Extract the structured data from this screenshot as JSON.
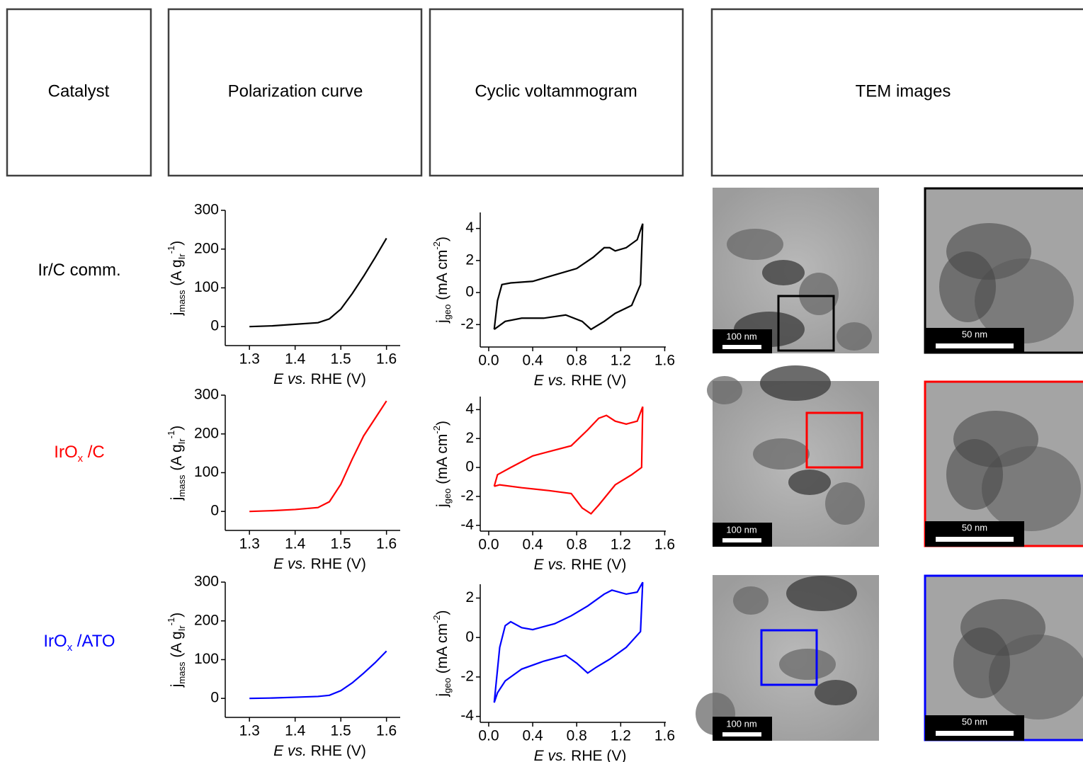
{
  "headers": [
    "Catalyst",
    "Polarization curve",
    "Cyclic voltammogram",
    "TEM images"
  ],
  "rows": [
    {
      "catalyst": [
        "Ir/C comm."
      ],
      "color": "#000000",
      "tem_scale_overview": "100 nm",
      "tem_scale_zoom": "50 nm"
    },
    {
      "catalyst": [
        "IrO",
        "x",
        " /C"
      ],
      "color": "#ff0000",
      "tem_scale_overview": "100 nm",
      "tem_scale_zoom": "50 nm"
    },
    {
      "catalyst": [
        "IrO",
        "x",
        " /ATO"
      ],
      "color": "#0000ff",
      "tem_scale_overview": "100 nm",
      "tem_scale_zoom": "50 nm"
    }
  ],
  "chart_data": [
    {
      "type": "line",
      "color": "#000000",
      "x": [
        1.3,
        1.35,
        1.4,
        1.45,
        1.475,
        1.5,
        1.525,
        1.55,
        1.575,
        1.6
      ],
      "values": [
        0,
        2,
        6,
        10,
        20,
        45,
        85,
        130,
        178,
        228
      ],
      "xlim": [
        1.247,
        1.63
      ],
      "ylim": [
        -49,
        300
      ],
      "xticks": [
        1.3,
        1.4,
        1.5,
        1.6
      ],
      "yticks": [
        0,
        100,
        200,
        300
      ],
      "xlabel": [
        "E",
        " vs.",
        " RHE (V)"
      ],
      "ylabel": [
        "j",
        "mass",
        " (A g",
        "Ir",
        "-1",
        ")"
      ]
    },
    {
      "type": "line",
      "color": "#000000",
      "x": [
        0.05,
        0.08,
        0.12,
        0.2,
        0.4,
        0.6,
        0.8,
        0.95,
        1.05,
        1.1,
        1.15,
        1.25,
        1.35,
        1.4,
        1.38,
        1.3,
        1.15,
        1.05,
        0.93,
        0.85,
        0.7,
        0.5,
        0.3,
        0.15,
        0.05
      ],
      "values": [
        -2.3,
        -0.5,
        0.5,
        0.6,
        0.7,
        1.1,
        1.5,
        2.2,
        2.8,
        2.8,
        2.6,
        2.8,
        3.3,
        4.3,
        0.5,
        -0.8,
        -1.3,
        -1.8,
        -2.3,
        -1.8,
        -1.4,
        -1.6,
        -1.6,
        -1.8,
        -2.3
      ],
      "xlim": [
        -0.077,
        1.61
      ],
      "ylim": [
        -3.4,
        5
      ],
      "xticks": [
        {
          "value": 0,
          "label": "0.0"
        },
        0.4,
        0.8,
        1.2,
        1.6
      ],
      "yticks": [
        -2,
        0,
        2,
        4
      ],
      "xlabel": [
        "E",
        " vs.",
        " RHE (V)"
      ],
      "ylabel": [
        "j",
        "geo",
        " (mA cm",
        "-2",
        ")"
      ]
    },
    {
      "type": "line",
      "color": "#ff0000",
      "x": [
        1.3,
        1.35,
        1.4,
        1.45,
        1.475,
        1.5,
        1.525,
        1.55,
        1.575,
        1.6
      ],
      "values": [
        0,
        2,
        5,
        10,
        25,
        70,
        135,
        195,
        240,
        285
      ],
      "xlim": [
        1.247,
        1.63
      ],
      "ylim": [
        -49,
        300
      ],
      "xticks": [
        1.3,
        1.4,
        1.5,
        1.6
      ],
      "yticks": [
        0,
        100,
        200,
        300
      ],
      "xlabel": [
        "E",
        " vs.",
        " RHE (V)"
      ],
      "ylabel": [
        "j",
        "mass",
        " (A g",
        "Ir",
        "-1",
        ")"
      ]
    },
    {
      "type": "line",
      "color": "#ff0000",
      "x": [
        0.05,
        0.08,
        0.2,
        0.4,
        0.6,
        0.75,
        0.9,
        1.0,
        1.07,
        1.15,
        1.25,
        1.35,
        1.4,
        1.39,
        1.3,
        1.15,
        1.0,
        0.93,
        0.85,
        0.75,
        0.55,
        0.3,
        0.1,
        0.05
      ],
      "values": [
        -1.3,
        -0.5,
        0,
        0.8,
        1.2,
        1.5,
        2.6,
        3.4,
        3.6,
        3.2,
        3.0,
        3.2,
        4.2,
        0,
        -0.5,
        -1.2,
        -2.6,
        -3.2,
        -2.8,
        -1.8,
        -1.6,
        -1.4,
        -1.2,
        -1.3
      ],
      "xlim": [
        -0.077,
        1.61
      ],
      "ylim": [
        -4.4,
        4.9
      ],
      "xticks": [
        {
          "value": 0,
          "label": "0.0"
        },
        0.4,
        0.8,
        1.2,
        1.6
      ],
      "yticks": [
        -4,
        -2,
        0,
        2,
        4
      ],
      "xlabel": [
        "E",
        " vs.",
        " RHE (V)"
      ],
      "ylabel": [
        "j",
        "geo",
        " (mA cm",
        "-2",
        ")"
      ]
    },
    {
      "type": "line",
      "color": "#0000ff",
      "x": [
        1.3,
        1.35,
        1.4,
        1.45,
        1.475,
        1.5,
        1.525,
        1.55,
        1.575,
        1.6
      ],
      "values": [
        0,
        1,
        3,
        5,
        8,
        20,
        40,
        65,
        92,
        122
      ],
      "xlim": [
        1.247,
        1.63
      ],
      "ylim": [
        -49,
        300
      ],
      "xticks": [
        1.3,
        1.4,
        1.5,
        1.6
      ],
      "yticks": [
        0,
        100,
        200,
        300
      ],
      "xlabel": [
        "E",
        " vs.",
        " RHE (V)"
      ],
      "ylabel": [
        "j",
        "mass",
        " (A g",
        "Ir",
        "-1",
        ")"
      ]
    },
    {
      "type": "line",
      "color": "#0000ff",
      "x": [
        0.05,
        0.1,
        0.15,
        0.2,
        0.3,
        0.4,
        0.6,
        0.75,
        0.9,
        1.05,
        1.12,
        1.25,
        1.35,
        1.4,
        1.38,
        1.25,
        1.1,
        0.98,
        0.9,
        0.8,
        0.7,
        0.5,
        0.3,
        0.15,
        0.08,
        0.05
      ],
      "values": [
        -3.3,
        -0.5,
        0.6,
        0.8,
        0.5,
        0.4,
        0.7,
        1.1,
        1.6,
        2.2,
        2.4,
        2.2,
        2.3,
        2.8,
        0.3,
        -0.5,
        -1.1,
        -1.5,
        -1.8,
        -1.3,
        -0.9,
        -1.2,
        -1.6,
        -2.2,
        -2.8,
        -3.3
      ],
      "xlim": [
        -0.077,
        1.61
      ],
      "ylim": [
        -4.3,
        2.7
      ],
      "xticks": [
        {
          "value": 0,
          "label": "0.0"
        },
        0.4,
        0.8,
        1.2,
        1.6
      ],
      "yticks": [
        -4,
        -2,
        0,
        2
      ],
      "xlabel": [
        "E",
        " vs.",
        " RHE (V)"
      ],
      "ylabel": [
        "j",
        "geo",
        " (mA cm",
        "-2",
        ")"
      ]
    }
  ]
}
